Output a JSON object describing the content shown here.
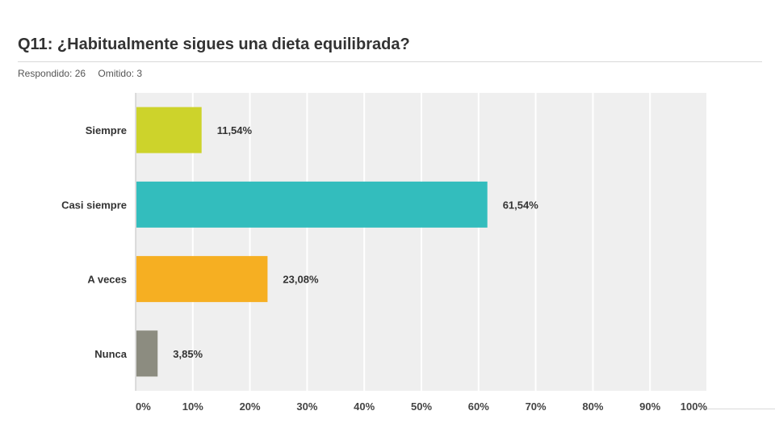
{
  "header": {
    "title": "Q11: ¿Habitualmente sigues una dieta equilibrada?",
    "answered_label": "Respondido: 26",
    "skipped_label": "Omitido: 3"
  },
  "chart_data": {
    "type": "bar",
    "orientation": "horizontal",
    "categories": [
      "Siempre",
      "Casi siempre",
      "A veces",
      "Nunca"
    ],
    "values": [
      11.54,
      61.54,
      23.08,
      3.85
    ],
    "value_labels": [
      "11,54%",
      "61,54%",
      "23,08%",
      "3,85%"
    ],
    "colors": [
      "#cdd32b",
      "#33bdbd",
      "#f6af22",
      "#8c8c80"
    ],
    "xlim": [
      0,
      100
    ],
    "xticks": [
      0,
      10,
      20,
      30,
      40,
      50,
      60,
      70,
      80,
      90,
      100
    ],
    "xtick_labels": [
      "0%",
      "10%",
      "20%",
      "30%",
      "40%",
      "50%",
      "60%",
      "70%",
      "80%",
      "90%",
      "100%"
    ],
    "grid": true,
    "plot_background": "#efefef",
    "title": "",
    "xlabel": "",
    "ylabel": ""
  }
}
